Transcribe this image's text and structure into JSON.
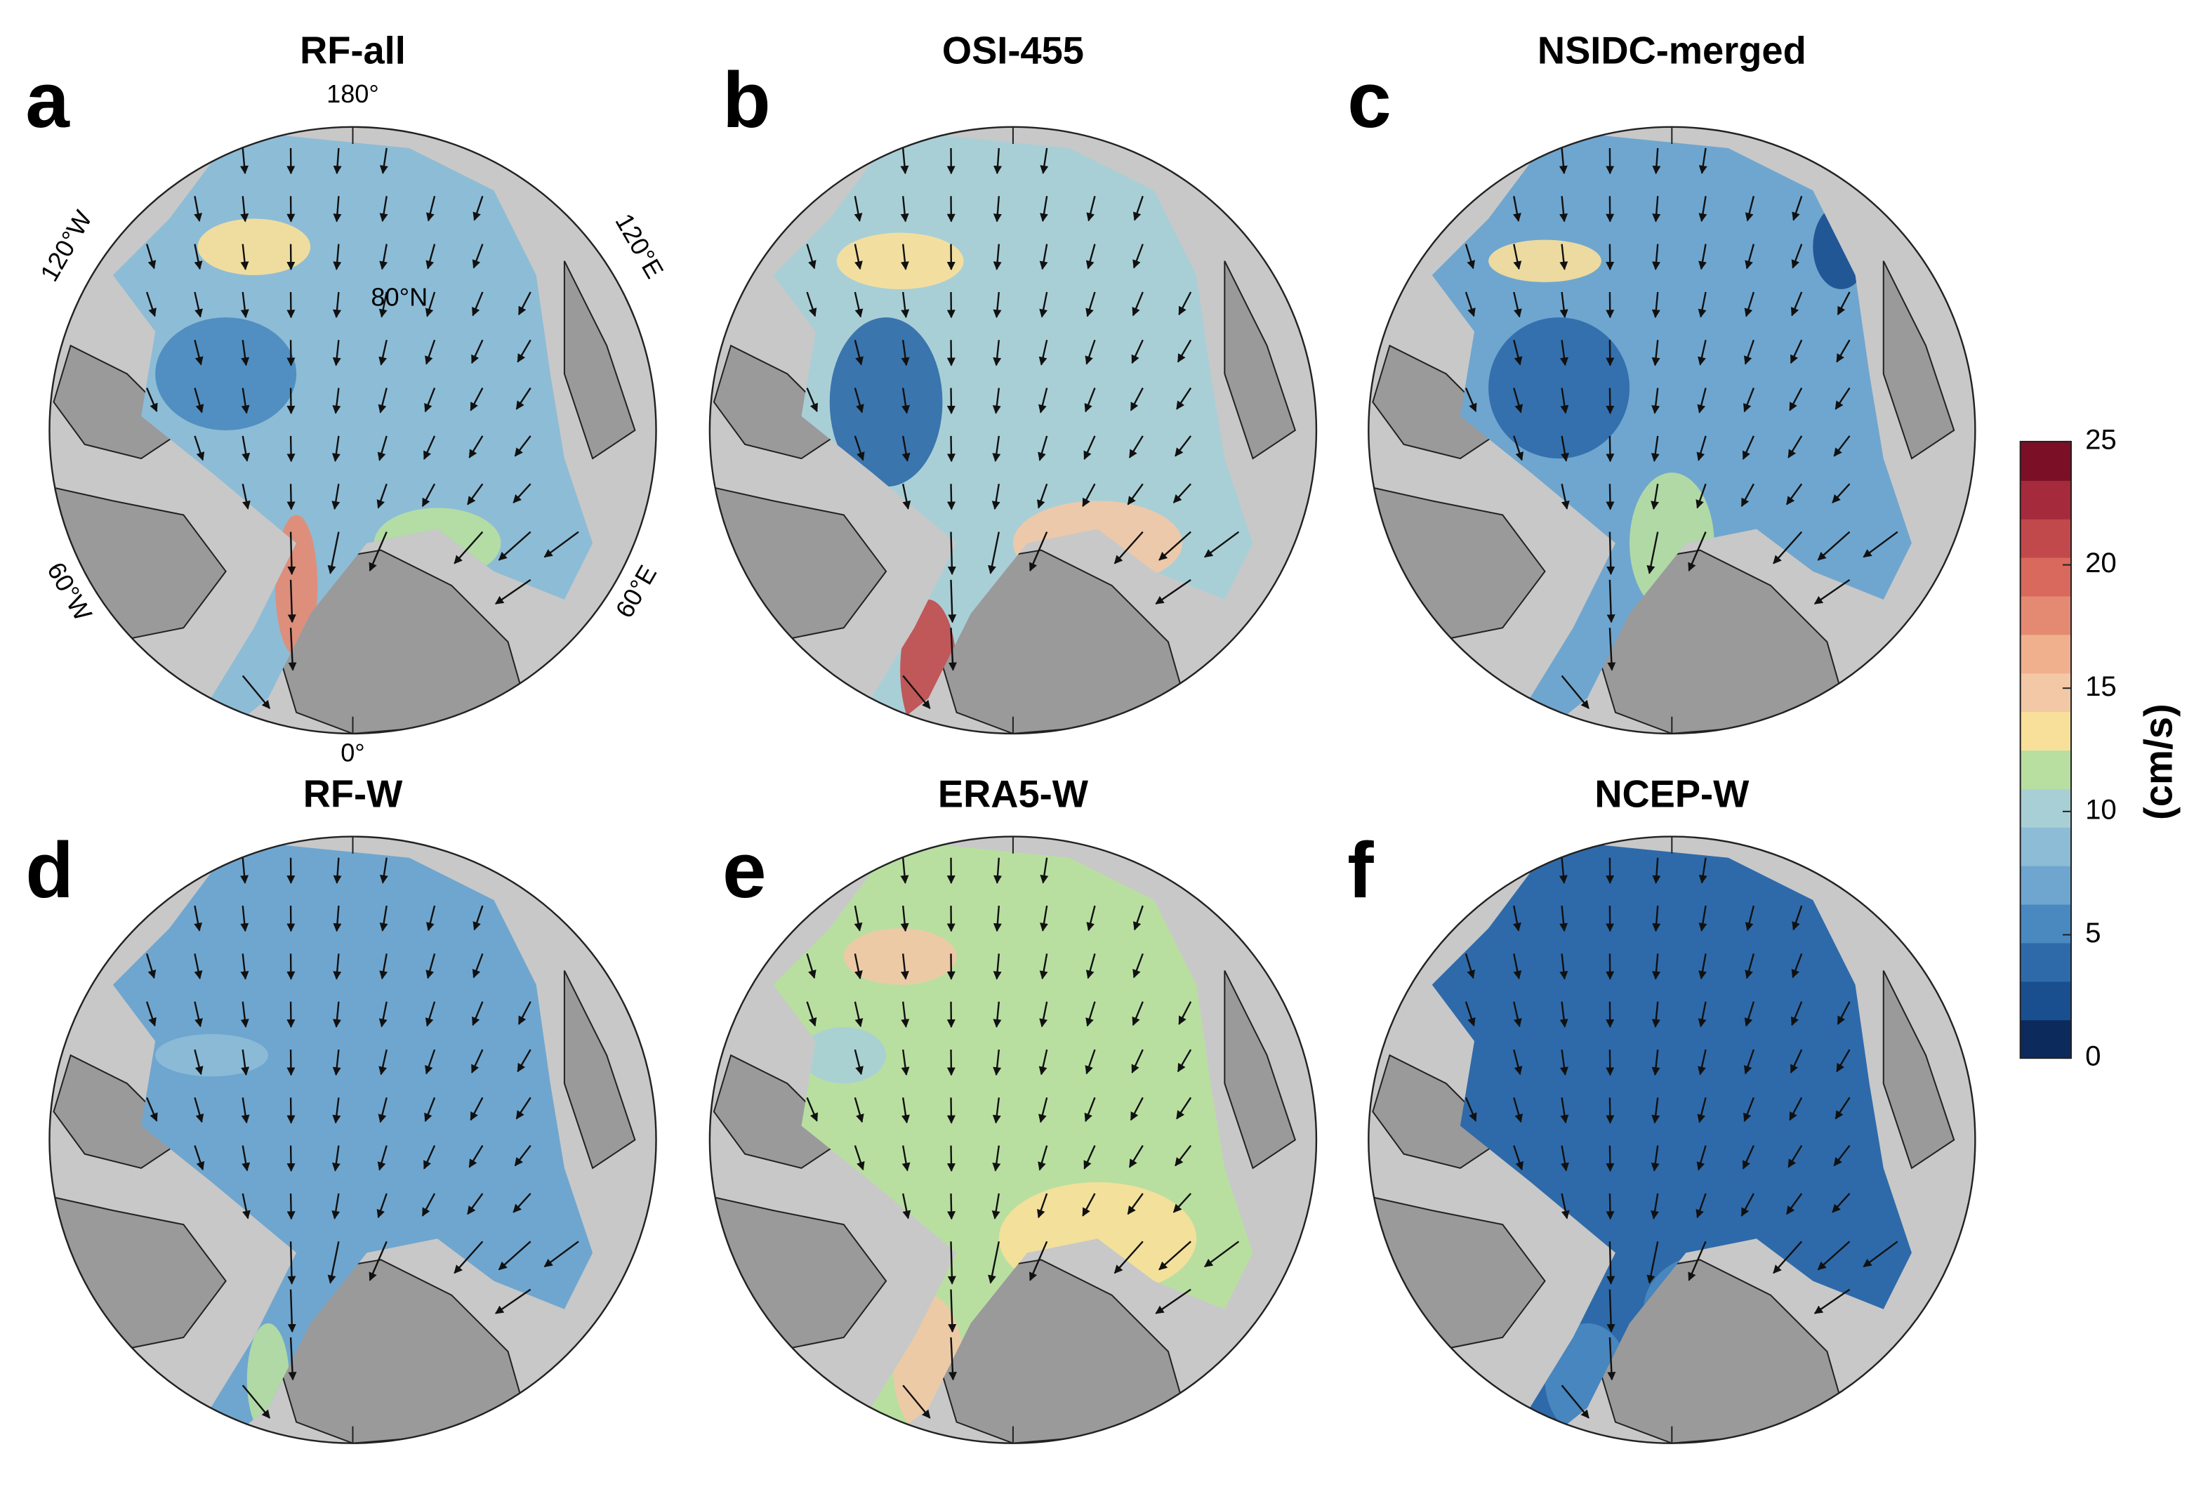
{
  "panels": [
    {
      "letter": "a",
      "title": "RF-all"
    },
    {
      "letter": "b",
      "title": "OSI-455"
    },
    {
      "letter": "c",
      "title": "NSIDC-merged"
    },
    {
      "letter": "d",
      "title": "RF-W"
    },
    {
      "letter": "e",
      "title": "ERA5-W"
    },
    {
      "letter": "f",
      "title": "NCEP-W"
    }
  ],
  "map_labels": [
    "180°",
    "120°W",
    "120°E",
    "80°N",
    "60°W",
    "60°E",
    "0°"
  ],
  "colorbar": {
    "label": "(cm/s)",
    "lim": [
      0,
      25
    ],
    "ticks": [
      0,
      5,
      10,
      15,
      20,
      25
    ],
    "colors": [
      "#0c2a5b",
      "#1a4f8f",
      "#2e6aaa",
      "#4a89c0",
      "#6fa6cf",
      "#8dbcd6",
      "#a9cfd6",
      "#b8dfa0",
      "#f9e09a",
      "#f3c8a6",
      "#f0b08e",
      "#e58a72",
      "#d8695c",
      "#c2494b",
      "#a52a3b",
      "#7a0f26"
    ]
  }
}
